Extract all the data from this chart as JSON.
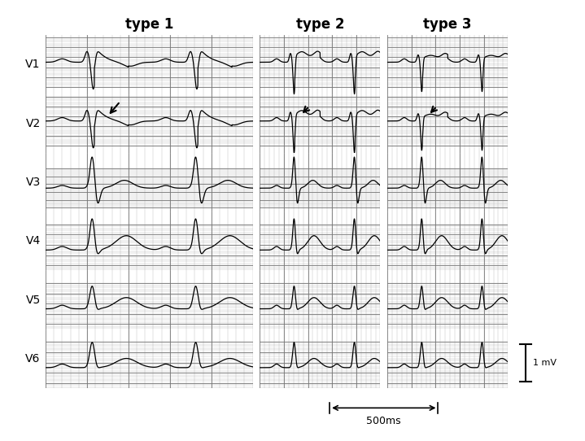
{
  "titles": [
    "type 1",
    "type 2",
    "type 3"
  ],
  "leads": [
    "V1",
    "V2",
    "V3",
    "V4",
    "V5",
    "V6"
  ],
  "bg_color": "#cccccc",
  "grid_minor_color": "#aaaaaa",
  "grid_major_color": "#777777",
  "line_color": "#000000",
  "panel_bg": "#d4d4d4",
  "scale_bar_text": "1 mV",
  "scale_time_text": "500ms",
  "title_fontsize": 12,
  "lead_fontsize": 10
}
